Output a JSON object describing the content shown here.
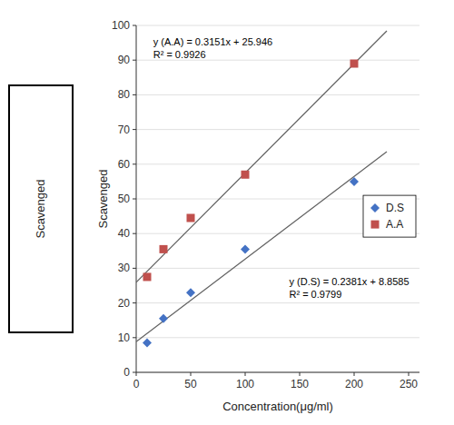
{
  "chart_data": {
    "type": "scatter",
    "x_label": "Concentration(μg/ml)",
    "y_label": "Scavenged",
    "xlim": [
      0,
      260
    ],
    "ylim": [
      0,
      100
    ],
    "xticks": [
      0,
      50,
      100,
      150,
      200,
      250
    ],
    "yticks": [
      0,
      10,
      20,
      30,
      40,
      50,
      60,
      70,
      80,
      90,
      100
    ],
    "grid": true,
    "legend": "right",
    "series": [
      {
        "name": "D.S",
        "color": "#4472c4",
        "marker": "diamond",
        "x": [
          10,
          25,
          50,
          100,
          200
        ],
        "values": [
          8.5,
          15.5,
          23,
          35.5,
          55
        ],
        "trendline": {
          "x": [
            0,
            230
          ],
          "values": [
            8.8585,
            63.6215
          ],
          "color": "#606060",
          "equation": "y (D.S) = 0.2381x + 8.8585",
          "r2": "R² = 0.9799"
        }
      },
      {
        "name": "A.A",
        "color": "#c0504d",
        "marker": "square",
        "x": [
          10,
          25,
          50,
          100,
          200
        ],
        "values": [
          27.5,
          35.5,
          44.5,
          57,
          89
        ],
        "trendline": {
          "x": [
            0,
            230
          ],
          "values": [
            25.946,
            98.419
          ],
          "color": "#606060",
          "equation": "y (A.A) = 0.3151x + 25.946",
          "r2": "R² = 0.9926"
        }
      }
    ]
  }
}
